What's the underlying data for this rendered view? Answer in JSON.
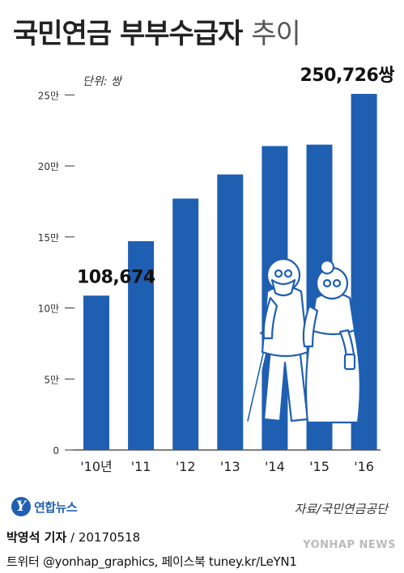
{
  "title": {
    "main": "국민연금 부부수급자",
    "light": "추이"
  },
  "unit": "단위: 쌍",
  "chart_data": {
    "type": "bar",
    "categories": [
      "'10년",
      "'11",
      "'12",
      "'13",
      "'14",
      "'15",
      "'16"
    ],
    "values": [
      108674,
      147000,
      177000,
      194000,
      214000,
      215000,
      250726
    ],
    "ylim": [
      0,
      250726
    ],
    "yticks": [
      0,
      50000,
      100000,
      150000,
      200000,
      250000
    ],
    "ytick_labels": [
      "0",
      "5만",
      "10만",
      "15만",
      "20만",
      "25만"
    ],
    "data_labels": [
      {
        "index": 0,
        "text": "108,674"
      },
      {
        "index": 6,
        "text": "250,726쌍"
      }
    ],
    "bar_color": "#1f5fb2",
    "grid": false
  },
  "logo": {
    "mark": "Y",
    "text": "연합뉴스"
  },
  "source": "자료/국민연금공단",
  "credit": {
    "name": "박영석 기자",
    "date": " / 20170518"
  },
  "social": "트위터 @yonhap_graphics, 페이스북 tuney.kr/LeYN1",
  "watermark": "YONHAP NEWS"
}
